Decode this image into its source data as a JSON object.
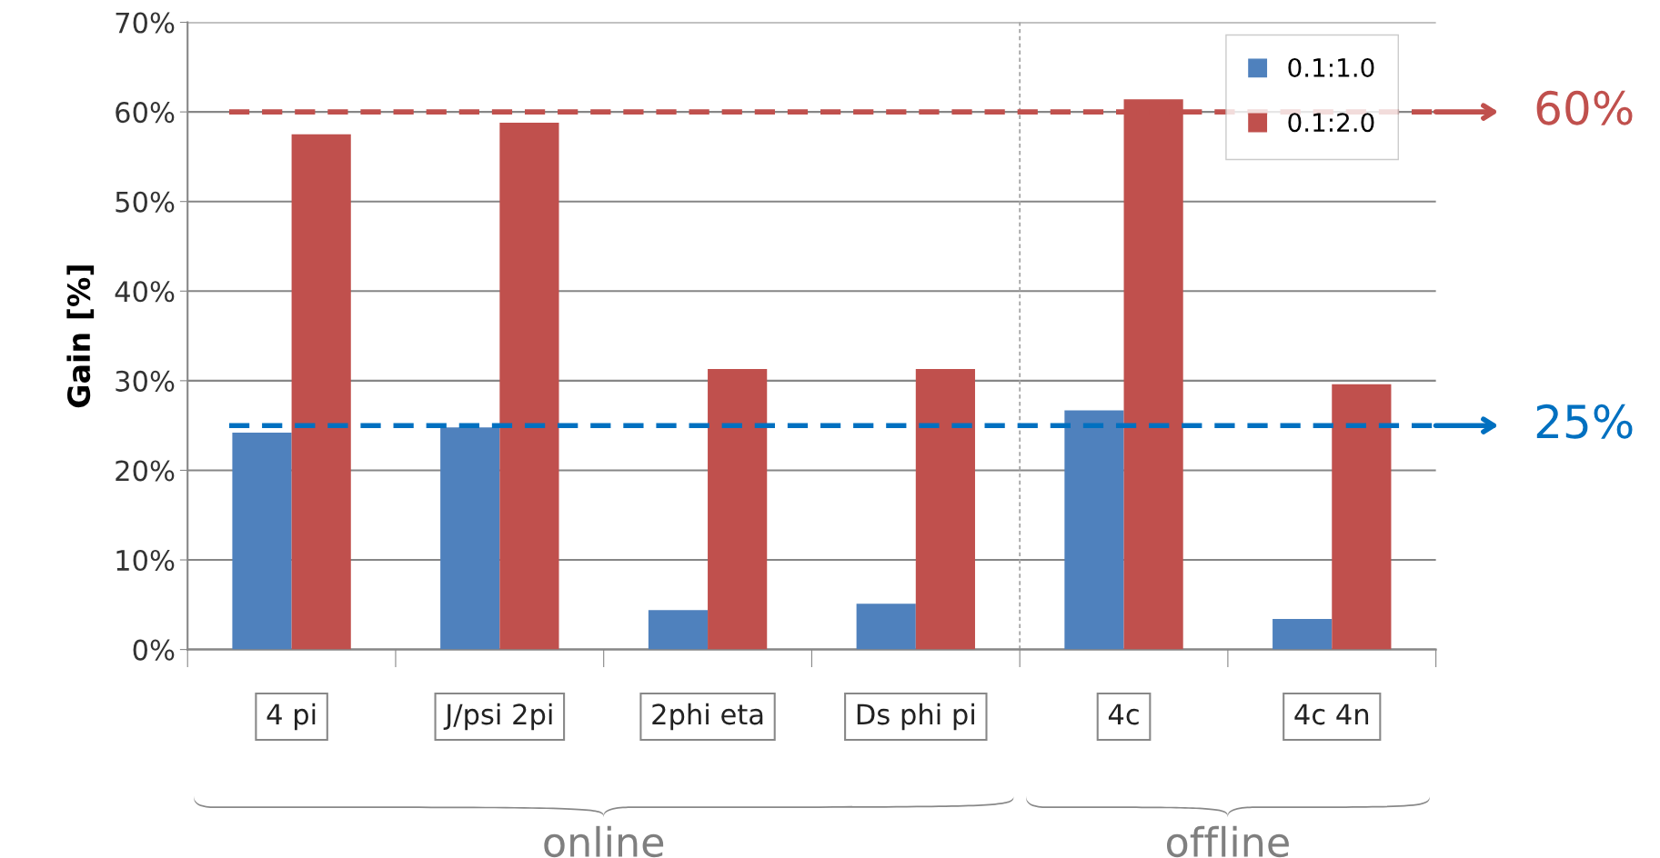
{
  "chart_data": {
    "type": "bar",
    "ylabel": "Gain [%]",
    "categories": [
      "4 pi",
      "J/psi 2pi",
      "2phi eta",
      "Ds phi pi",
      "4c",
      "4c 4n"
    ],
    "series": [
      {
        "name": "0.1:1.0",
        "color": "#4f81bd",
        "values": [
          24.2,
          24.8,
          4.4,
          5.1,
          26.7,
          3.4
        ]
      },
      {
        "name": "0.1:2.0",
        "color": "#c0504d",
        "values": [
          57.5,
          58.8,
          31.3,
          31.3,
          61.4,
          29.6
        ]
      }
    ],
    "ylim": [
      0,
      70
    ],
    "yticks": [
      {
        "value": 0,
        "label": "0%"
      },
      {
        "value": 10,
        "label": "10%"
      },
      {
        "value": 20,
        "label": "20%"
      },
      {
        "value": 30,
        "label": "30%"
      },
      {
        "value": 40,
        "label": "40%"
      },
      {
        "value": 50,
        "label": "50%"
      },
      {
        "value": 60,
        "label": "60%"
      },
      {
        "value": 70,
        "label": "70%"
      }
    ],
    "grid": "y",
    "legend": "top right",
    "ref_lines": [
      {
        "axis": "y",
        "value": 60,
        "label": "60%",
        "color": "#c0504d",
        "line_style": "dashed"
      },
      {
        "axis": "y",
        "value": 25,
        "label": "25%",
        "color": "#0070c0",
        "line_style": "dashed"
      }
    ],
    "annotations": [
      "online",
      "offline"
    ]
  }
}
